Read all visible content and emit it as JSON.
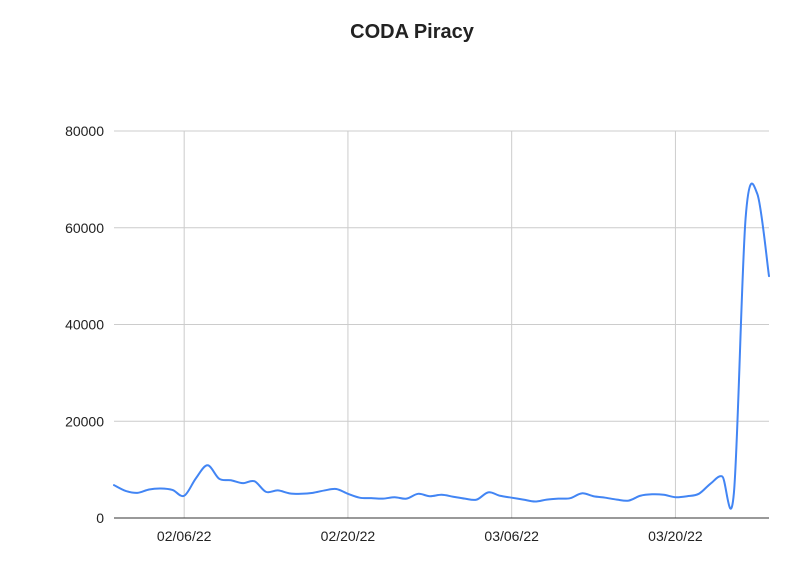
{
  "chart_data": {
    "type": "line",
    "title": "CODA Piracy",
    "xlabel": "",
    "ylabel": "",
    "x_start": "01/31/22",
    "x_end": "03/28/22",
    "xticks": [
      "02/06/22",
      "02/20/22",
      "03/06/22",
      "03/20/22"
    ],
    "yticks": [
      "0",
      "20000",
      "40000",
      "60000",
      "80000"
    ],
    "ylim": [
      0,
      80000
    ],
    "grid": true,
    "legend": "none",
    "series": [
      {
        "color": "#4285f4",
        "x": [
          "01/31/22",
          "02/01/22",
          "02/02/22",
          "02/03/22",
          "02/04/22",
          "02/05/22",
          "02/06/22",
          "02/07/22",
          "02/08/22",
          "02/09/22",
          "02/10/22",
          "02/11/22",
          "02/12/22",
          "02/13/22",
          "02/14/22",
          "02/15/22",
          "02/16/22",
          "02/17/22",
          "02/18/22",
          "02/19/22",
          "02/20/22",
          "02/21/22",
          "02/22/22",
          "02/23/22",
          "02/24/22",
          "02/25/22",
          "02/26/22",
          "02/27/22",
          "02/28/22",
          "03/01/22",
          "03/02/22",
          "03/03/22",
          "03/04/22",
          "03/05/22",
          "03/06/22",
          "03/07/22",
          "03/08/22",
          "03/09/22",
          "03/10/22",
          "03/11/22",
          "03/12/22",
          "03/13/22",
          "03/14/22",
          "03/15/22",
          "03/16/22",
          "03/17/22",
          "03/18/22",
          "03/19/22",
          "03/20/22",
          "03/21/22",
          "03/22/22",
          "03/23/22",
          "03/24/22",
          "03/25/22",
          "03/26/22",
          "03/27/22",
          "03/28/22"
        ],
        "values": [
          6800,
          5600,
          5200,
          5900,
          6100,
          5800,
          4600,
          8200,
          10900,
          8100,
          7800,
          7200,
          7600,
          5400,
          5700,
          5100,
          5000,
          5200,
          5700,
          6000,
          5000,
          4200,
          4100,
          4000,
          4300,
          4000,
          5000,
          4500,
          4800,
          4400,
          4000,
          3800,
          5300,
          4600,
          4200,
          3800,
          3400,
          3800,
          4000,
          4100,
          5100,
          4500,
          4200,
          3800,
          3600,
          4600,
          4900,
          4800,
          4300,
          4500,
          5000,
          7100,
          8600,
          5200,
          62000,
          67000,
          50000
        ]
      }
    ]
  }
}
